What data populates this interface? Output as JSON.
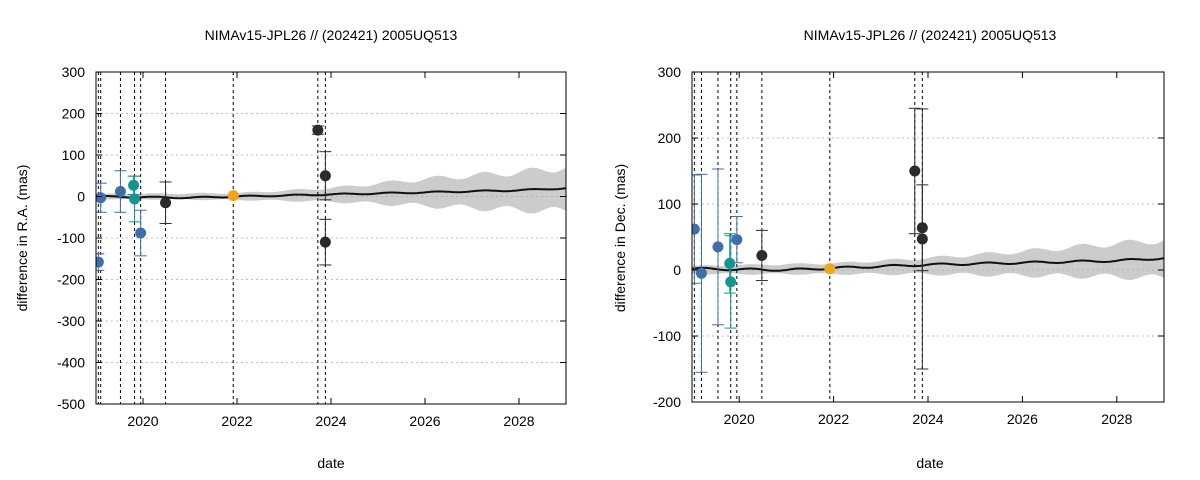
{
  "chart_data": [
    {
      "type": "scatter",
      "title": "NIMAv15-JPL26 // (202421) 2005UQ513",
      "xlabel": "date",
      "ylabel": "difference in R.A. (mas)",
      "xlim": [
        2019.0,
        2029.0
      ],
      "ylim": [
        -500,
        300
      ],
      "xticks": [
        2020,
        2022,
        2024,
        2026,
        2028
      ],
      "yticks": [
        -500,
        -400,
        -300,
        -200,
        -100,
        0,
        100,
        200,
        300
      ],
      "grid": "horizontal dotted",
      "vlines": [
        2019.05,
        2019.1,
        2019.52,
        2019.82,
        2019.95,
        2020.48,
        2021.92,
        2023.72,
        2023.88
      ],
      "band": [
        {
          "x": 2019.0,
          "lo": -6,
          "hi": 6
        },
        {
          "x": 2022.0,
          "lo": -8,
          "hi": 8
        },
        {
          "x": 2024.0,
          "lo": -12,
          "hi": 20
        },
        {
          "x": 2026.0,
          "lo": -22,
          "hi": 42
        },
        {
          "x": 2028.0,
          "lo": -32,
          "hi": 58
        },
        {
          "x": 2029.0,
          "lo": -35,
          "hi": 70
        }
      ],
      "trend": [
        {
          "x": 2019.0,
          "y": 0
        },
        {
          "x": 2021.0,
          "y": -3
        },
        {
          "x": 2022.0,
          "y": 0
        },
        {
          "x": 2024.0,
          "y": 5
        },
        {
          "x": 2026.0,
          "y": 10
        },
        {
          "x": 2028.0,
          "y": 15
        },
        {
          "x": 2029.0,
          "y": 20
        }
      ],
      "series": [
        {
          "name": "blue",
          "color": "#3f6fa8",
          "points": [
            {
              "x": 2019.05,
              "y": -158,
              "err": 20
            },
            {
              "x": 2019.1,
              "y": -3,
              "err": 35
            },
            {
              "x": 2019.52,
              "y": 12,
              "err": 50
            },
            {
              "x": 2019.95,
              "y": -88,
              "err": 55
            }
          ]
        },
        {
          "name": "teal",
          "color": "#14958f",
          "points": [
            {
              "x": 2019.8,
              "y": 27,
              "err": 22
            },
            {
              "x": 2019.82,
              "y": -6,
              "err": 55
            }
          ]
        },
        {
          "name": "black",
          "color": "#2b2b2b",
          "points": [
            {
              "x": 2020.48,
              "y": -15,
              "err": 50
            },
            {
              "x": 2023.72,
              "y": 160,
              "err": 10
            },
            {
              "x": 2023.88,
              "y": 50,
              "err": 58
            },
            {
              "x": 2023.88,
              "y": -110,
              "err": 55
            }
          ]
        },
        {
          "name": "orange",
          "color": "#f2a51a",
          "points": [
            {
              "x": 2021.92,
              "y": 2,
              "err": 0
            }
          ]
        }
      ]
    },
    {
      "type": "scatter",
      "title": "NIMAv15-JPL26 // (202421) 2005UQ513",
      "xlabel": "date",
      "ylabel": "difference in Dec. (mas)",
      "xlim": [
        2019.0,
        2029.0
      ],
      "ylim": [
        -200,
        300
      ],
      "xticks": [
        2020,
        2022,
        2024,
        2026,
        2028
      ],
      "yticks": [
        -200,
        -100,
        0,
        100,
        200,
        300
      ],
      "grid": "horizontal dotted",
      "vlines": [
        2019.05,
        2019.2,
        2019.55,
        2019.82,
        2019.95,
        2020.48,
        2021.92,
        2023.72,
        2023.88
      ],
      "band": [
        {
          "x": 2019.0,
          "lo": -6,
          "hi": 6
        },
        {
          "x": 2022.0,
          "lo": -6,
          "hi": 10
        },
        {
          "x": 2024.0,
          "lo": -6,
          "hi": 18
        },
        {
          "x": 2026.0,
          "lo": -8,
          "hi": 28
        },
        {
          "x": 2028.0,
          "lo": -10,
          "hi": 40
        },
        {
          "x": 2029.0,
          "lo": -12,
          "hi": 45
        }
      ],
      "trend": [
        {
          "x": 2019.0,
          "y": 2
        },
        {
          "x": 2021.0,
          "y": 0
        },
        {
          "x": 2022.0,
          "y": 3
        },
        {
          "x": 2024.0,
          "y": 8
        },
        {
          "x": 2026.0,
          "y": 11
        },
        {
          "x": 2028.0,
          "y": 14
        },
        {
          "x": 2029.0,
          "y": 18
        }
      ],
      "series": [
        {
          "name": "blue",
          "color": "#3f6fa8",
          "points": [
            {
              "x": 2019.05,
              "y": 62,
              "err": 82
            },
            {
              "x": 2019.2,
              "y": -5,
              "err": 150
            },
            {
              "x": 2019.55,
              "y": 35,
              "err": 118
            },
            {
              "x": 2019.95,
              "y": 46,
              "err": 35
            }
          ]
        },
        {
          "name": "teal",
          "color": "#14958f",
          "points": [
            {
              "x": 2019.8,
              "y": 10,
              "err": 45
            },
            {
              "x": 2019.82,
              "y": -18,
              "err": 70
            }
          ]
        },
        {
          "name": "black",
          "color": "#2b2b2b",
          "points": [
            {
              "x": 2020.48,
              "y": 22,
              "err": 38
            },
            {
              "x": 2023.72,
              "y": 150,
              "err": 95
            },
            {
              "x": 2023.88,
              "y": 64,
              "err": 65
            },
            {
              "x": 2023.88,
              "y": 47,
              "err": 197
            }
          ]
        },
        {
          "name": "orange",
          "color": "#f2a51a",
          "points": [
            {
              "x": 2021.92,
              "y": 2,
              "err": 0
            }
          ]
        }
      ]
    }
  ]
}
